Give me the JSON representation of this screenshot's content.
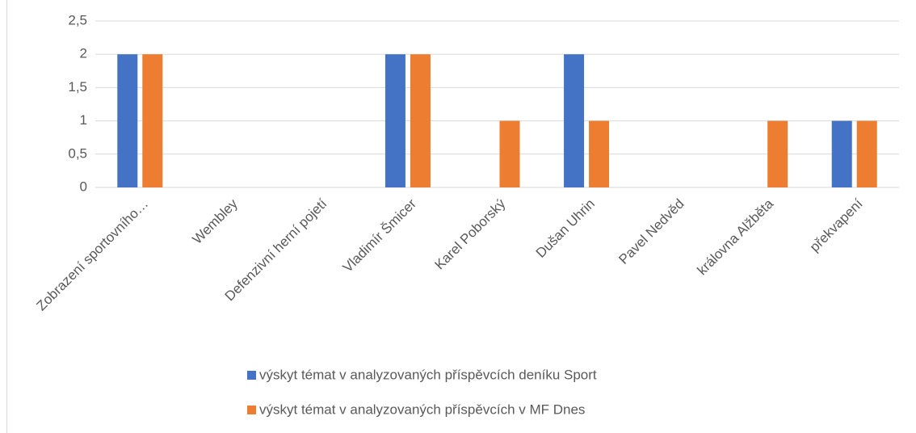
{
  "chart_data": {
    "type": "bar",
    "categories": [
      "Zobrazení sportovního…",
      "Wembley",
      "Defenzivní herní pojetí",
      "Vladimír Šmicer",
      "Karel Poborský",
      "Dušan Uhrin",
      "Pavel Nedvěd",
      "královna Alžběta",
      "překvapení"
    ],
    "series": [
      {
        "name": "výskyt témat v analyzovaných příspěvcích deníku Sport",
        "color": "#4472c4",
        "values": [
          2,
          0,
          0,
          2,
          0,
          2,
          0,
          0,
          1
        ]
      },
      {
        "name": "výskyt témat v analyzovaných příspěvcích v MF Dnes",
        "color": "#ed7d31",
        "values": [
          2,
          0,
          0,
          2,
          1,
          1,
          0,
          1,
          1
        ]
      }
    ],
    "ylim": [
      0,
      2.5
    ],
    "yticks": [
      0,
      {
        "value": 0.5,
        "label": "0,5"
      },
      1,
      {
        "value": 1.5,
        "label": "1,5"
      },
      2,
      {
        "value": 2.5,
        "label": "2,5"
      }
    ],
    "grid": true
  }
}
